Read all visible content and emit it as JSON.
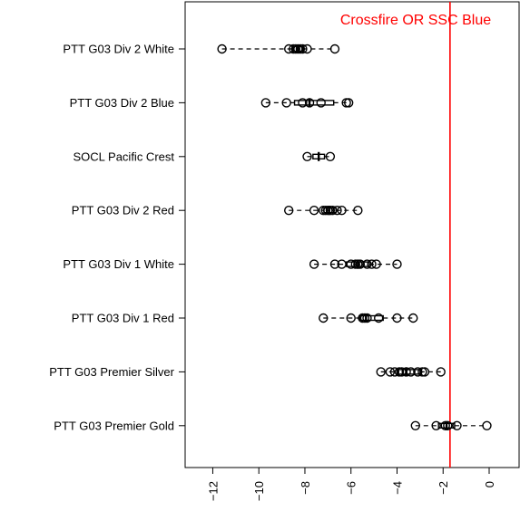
{
  "chart_data": {
    "type": "boxplot",
    "orientation": "horizontal",
    "categories": [
      "PTT G03 Div 2 White",
      "PTT G03 Div 2 Blue",
      "SOCL Pacific Crest",
      "PTT G03 Div 2 Red",
      "PTT G03 Div 1 White",
      "PTT G03 Div 1 Red",
      "PTT G03 Premier Silver",
      "PTT G03 Premier Gold"
    ],
    "series": [
      {
        "category": "PTT G03 Div 2 White",
        "points": [
          -11.6,
          -8.7,
          -8.5,
          -8.4,
          -8.3,
          -8.2,
          -8.1,
          -7.9,
          -6.7
        ]
      },
      {
        "category": "PTT G03 Div 2 Blue",
        "points": [
          -9.7,
          -8.8,
          -8.1,
          -7.8,
          -7.3,
          -6.2,
          -6.1
        ]
      },
      {
        "category": "SOCL Pacific Crest",
        "points": [
          -7.9,
          -6.9
        ]
      },
      {
        "category": "PTT G03 Div 2 Red",
        "points": [
          -8.7,
          -7.6,
          -7.2,
          -7.1,
          -7.0,
          -6.9,
          -6.8,
          -6.6,
          -6.4,
          -5.7
        ]
      },
      {
        "category": "PTT G03 Div 1 White",
        "points": [
          -7.6,
          -6.7,
          -6.4,
          -6.0,
          -5.8,
          -5.7,
          -5.6,
          -5.3,
          -5.1,
          -4.9,
          -4.0
        ]
      },
      {
        "category": "PTT G03 Div 1 Red",
        "points": [
          -7.2,
          -6.0,
          -5.5,
          -5.4,
          -5.3,
          -4.8,
          -4.0,
          -3.3
        ]
      },
      {
        "category": "PTT G03 Premier Silver",
        "points": [
          -4.7,
          -4.3,
          -4.1,
          -3.9,
          -3.8,
          -3.6,
          -3.4,
          -3.1,
          -2.9,
          -2.8,
          -2.1
        ]
      },
      {
        "category": "PTT G03 Premier Gold",
        "points": [
          -3.2,
          -2.3,
          -1.9,
          -1.8,
          -1.4,
          -0.1
        ]
      }
    ],
    "xlim": [
      -13.2,
      1.3
    ],
    "x_ticks": [
      -12,
      -10,
      -8,
      -6,
      -4,
      -2,
      0
    ],
    "reference_line": {
      "x": -1.7,
      "label": "Crossfire OR SSC Blue",
      "color": "#ff0000"
    },
    "title": "",
    "xlabel": "",
    "ylabel": "",
    "grid": false,
    "legend": "none"
  }
}
